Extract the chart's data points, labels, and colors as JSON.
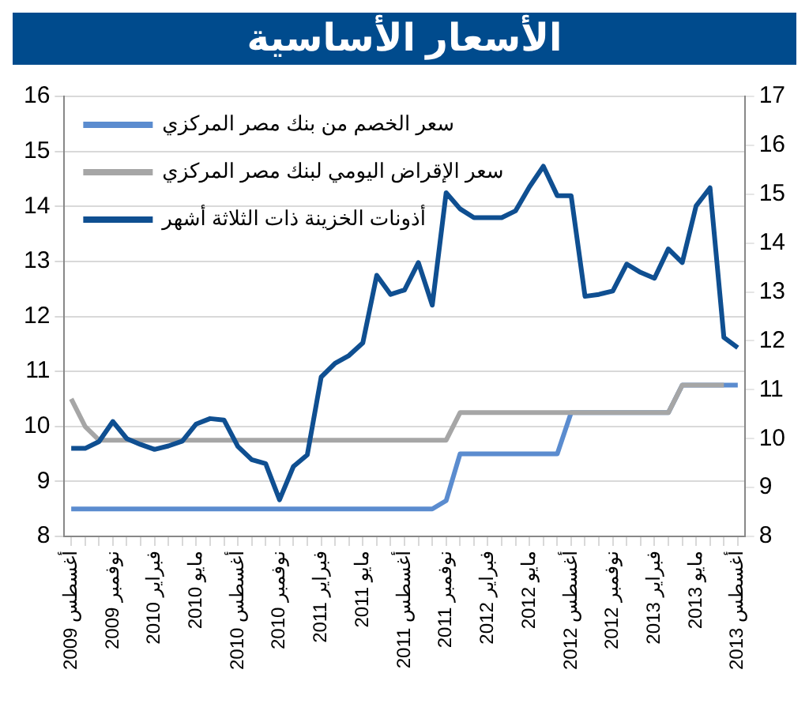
{
  "chart_data": {
    "type": "line",
    "title": "الأسعار الأساسية",
    "categories": [
      "أغسطس 2009",
      null,
      null,
      "نوفمبر 2009",
      null,
      null,
      "فبراير 2010",
      null,
      null,
      "مايو 2010",
      null,
      null,
      "أغسطس 2010",
      null,
      null,
      "نوفمبر 2010",
      null,
      null,
      "فبراير 2011",
      null,
      null,
      "مايو 2011",
      null,
      null,
      "أغسطس 2011",
      null,
      null,
      "نوفمبر 2011",
      null,
      null,
      "فبراير 2012",
      null,
      null,
      "مايو 2012",
      null,
      null,
      "أغسطس 2012",
      null,
      null,
      "نوفمبر 2012",
      null,
      null,
      "فبراير 2013",
      null,
      null,
      "مايو 2013",
      null,
      null,
      "أغسطس 2013"
    ],
    "series": [
      {
        "name": "سعر الخصم من بنك مصر المركزي",
        "color": "#5b8ccf",
        "values": [
          8.5,
          8.5,
          8.5,
          8.5,
          8.5,
          8.5,
          8.5,
          8.5,
          8.5,
          8.5,
          8.5,
          8.5,
          8.5,
          8.5,
          8.5,
          8.5,
          8.5,
          8.5,
          8.5,
          8.5,
          8.5,
          8.5,
          8.5,
          8.5,
          8.5,
          8.5,
          8.5,
          8.65,
          9.5,
          9.5,
          9.5,
          9.5,
          9.5,
          9.5,
          9.5,
          9.5,
          10.25,
          10.25,
          10.25,
          10.25,
          10.25,
          10.25,
          10.25,
          10.25,
          10.75,
          10.75,
          10.75,
          10.75,
          10.75
        ]
      },
      {
        "name": "سعر الإقراض اليومي لبنك مصر المركزي",
        "color": "#a6a6a6",
        "values": [
          10.5,
          10.0,
          9.75,
          9.75,
          9.75,
          9.75,
          9.75,
          9.75,
          9.75,
          9.75,
          9.75,
          9.75,
          9.75,
          9.75,
          9.75,
          9.75,
          9.75,
          9.75,
          9.75,
          9.75,
          9.75,
          9.75,
          9.75,
          9.75,
          9.75,
          9.75,
          9.75,
          9.75,
          10.25,
          10.25,
          10.25,
          10.25,
          10.25,
          10.25,
          10.25,
          10.25,
          10.25,
          10.25,
          10.25,
          10.25,
          10.25,
          10.25,
          10.25,
          10.25,
          10.75,
          10.75,
          10.75,
          10.75,
          null
        ]
      },
      {
        "name": "أذونات الخزينة ذات الثلاثة أشهر",
        "color": "#0f4f91",
        "axis": "y2",
        "values": [
          9.8,
          9.8,
          9.94,
          10.35,
          10.0,
          9.88,
          9.78,
          9.85,
          9.95,
          10.3,
          10.41,
          10.38,
          9.84,
          9.57,
          9.49,
          8.75,
          9.43,
          9.67,
          11.26,
          11.54,
          11.7,
          11.96,
          13.34,
          12.95,
          13.04,
          13.6,
          12.73,
          15.03,
          14.7,
          14.52,
          14.52,
          14.52,
          14.66,
          15.15,
          15.57,
          14.97,
          14.97,
          12.91,
          12.95,
          13.02,
          13.57,
          13.4,
          13.28,
          13.88,
          13.6,
          14.76,
          15.13,
          12.07,
          11.86
        ]
      }
    ],
    "ylim": [
      8,
      16
    ],
    "yticks": [
      8,
      9,
      10,
      11,
      12,
      13,
      14,
      15,
      16
    ],
    "y2lim": [
      8,
      17
    ],
    "y2ticks": [
      8,
      9,
      10,
      11,
      12,
      13,
      14,
      15,
      16,
      17
    ],
    "grid": "y",
    "legend": "top left",
    "marker": "none",
    "line_style": "solid"
  }
}
